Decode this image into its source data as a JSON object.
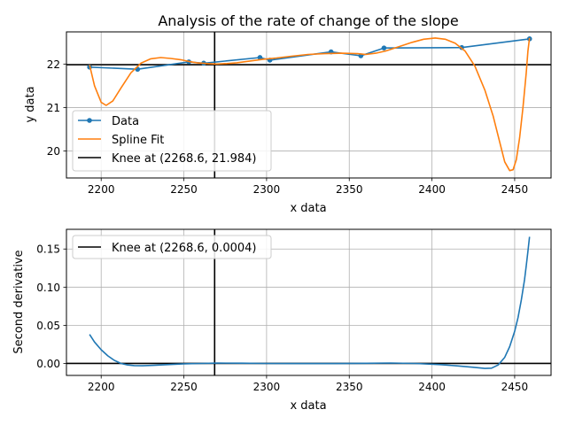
{
  "chart_data": [
    {
      "type": "line",
      "title": "Analysis of the rate of change of the slope",
      "xlabel": "x data",
      "ylabel": "y data",
      "xlim": [
        2179,
        2472
      ],
      "ylim": [
        19.38,
        22.74
      ],
      "xticks": [
        2200,
        2250,
        2300,
        2350,
        2400,
        2450
      ],
      "yticks": [
        20,
        21,
        22
      ],
      "grid": true,
      "legend_placement": "lower-left",
      "series": [
        {
          "name": "Data",
          "color": "#1f77b4",
          "marker": "circle",
          "x": [
            2193,
            2222,
            2253,
            2262,
            2296,
            2302,
            2339,
            2357,
            2371,
            2418,
            2459
          ],
          "y": [
            21.93,
            21.88,
            22.05,
            22.02,
            22.15,
            22.09,
            22.28,
            22.19,
            22.37,
            22.38,
            22.58
          ]
        },
        {
          "name": "Spline Fit",
          "color": "#ff7f0e",
          "x": [
            2193,
            2196,
            2200,
            2203,
            2207,
            2212,
            2218,
            2224,
            2230,
            2236,
            2242,
            2248,
            2253,
            2258,
            2264,
            2270,
            2276,
            2282,
            2290,
            2298,
            2306,
            2315,
            2325,
            2335,
            2345,
            2355,
            2360,
            2366,
            2372,
            2380,
            2388,
            2395,
            2402,
            2408,
            2414,
            2420,
            2426,
            2432,
            2437,
            2441,
            2444,
            2447,
            2449,
            2451,
            2453,
            2455,
            2457,
            2458,
            2459
          ],
          "y": [
            21.98,
            21.5,
            21.12,
            21.05,
            21.15,
            21.45,
            21.8,
            22.02,
            22.12,
            22.15,
            22.13,
            22.1,
            22.06,
            22.03,
            22.01,
            22.0,
            22.01,
            22.03,
            22.07,
            22.11,
            22.14,
            22.18,
            22.22,
            22.24,
            22.25,
            22.24,
            22.22,
            22.25,
            22.3,
            22.4,
            22.5,
            22.57,
            22.6,
            22.57,
            22.48,
            22.3,
            21.95,
            21.4,
            20.8,
            20.2,
            19.75,
            19.55,
            19.57,
            19.8,
            20.3,
            21.0,
            21.8,
            22.3,
            22.6
          ]
        }
      ],
      "knee": {
        "label": "Knee at (2268.6, 21.984)",
        "x": 2268.6,
        "y": 21.984,
        "color": "#000000"
      }
    },
    {
      "type": "line",
      "title": "",
      "xlabel": "x data",
      "ylabel": "Second derivative",
      "xlim": [
        2179,
        2472
      ],
      "ylim": [
        -0.0157,
        0.1758
      ],
      "xticks": [
        2200,
        2250,
        2300,
        2350,
        2400,
        2450
      ],
      "yticks": [
        0.0,
        0.05,
        0.1,
        0.15
      ],
      "ytick_labels": [
        "0.00",
        "0.05",
        "0.10",
        "0.15"
      ],
      "grid": true,
      "legend_placement": "upper-left",
      "series": [
        {
          "color": "#1f77b4",
          "x": [
            2193,
            2196,
            2200,
            2204,
            2208,
            2212,
            2216,
            2220,
            2225,
            2232,
            2240,
            2250,
            2260,
            2270,
            2285,
            2300,
            2320,
            2340,
            2360,
            2375,
            2390,
            2405,
            2415,
            2425,
            2432,
            2436,
            2440,
            2444,
            2447,
            2450,
            2452,
            2454,
            2456,
            2457,
            2458,
            2459
          ],
          "y": [
            0.038,
            0.028,
            0.018,
            0.01,
            0.004,
            0.0,
            -0.002,
            -0.0028,
            -0.003,
            -0.0025,
            -0.0015,
            -0.0005,
            0.0,
            0.0004,
            0.0003,
            0.0,
            -0.0002,
            -0.0002,
            0.0002,
            0.0006,
            0.0,
            -0.0015,
            -0.0032,
            -0.005,
            -0.0065,
            -0.0062,
            -0.002,
            0.008,
            0.022,
            0.042,
            0.06,
            0.083,
            0.11,
            0.128,
            0.147,
            0.166
          ]
        }
      ],
      "knee": {
        "label": "Knee at (2268.6, 0.0004)",
        "x": 2268.6,
        "y": 0.0,
        "color": "#000000"
      }
    }
  ]
}
